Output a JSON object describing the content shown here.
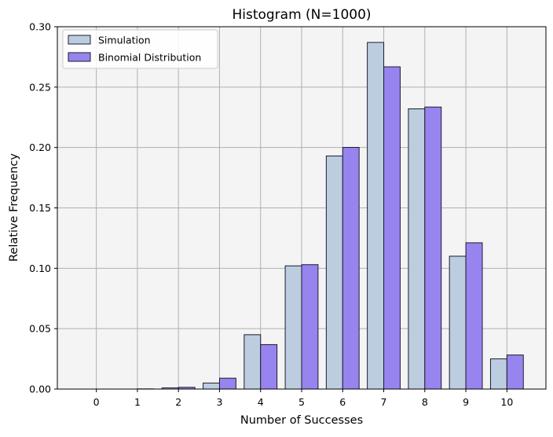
{
  "chart_data": {
    "type": "bar",
    "title": "Histogram (N=1000)",
    "xlabel": "Number of Successes",
    "ylabel": "Relative Frequency",
    "categories": [
      "0",
      "1",
      "2",
      "3",
      "4",
      "5",
      "6",
      "7",
      "8",
      "9",
      "10"
    ],
    "x": [
      0,
      1,
      2,
      3,
      4,
      5,
      6,
      7,
      8,
      9,
      10
    ],
    "series": [
      {
        "name": "Simulation",
        "color": "#bccde0",
        "values": [
          0.0,
          0.0,
          0.001,
          0.005,
          0.045,
          0.102,
          0.193,
          0.287,
          0.232,
          0.11,
          0.025
        ]
      },
      {
        "name": "Binomial Distribution",
        "color": "#9884ee",
        "values": [
          5.9e-06,
          0.000138,
          0.00145,
          0.009,
          0.0368,
          0.103,
          0.2001,
          0.2668,
          0.2335,
          0.1211,
          0.0282
        ]
      }
    ],
    "ylim": [
      0,
      0.3
    ],
    "xlim": [
      -0.95,
      10.95
    ],
    "yticks": [
      "0.00",
      "0.05",
      "0.10",
      "0.15",
      "0.20",
      "0.25",
      "0.30"
    ],
    "ytick_values": [
      0,
      0.05,
      0.1,
      0.15,
      0.2,
      0.25,
      0.3
    ],
    "grid": true,
    "legend_position": "upper-left",
    "background_color": "#f4f4f4",
    "edge_color": "#1c1c2e"
  }
}
